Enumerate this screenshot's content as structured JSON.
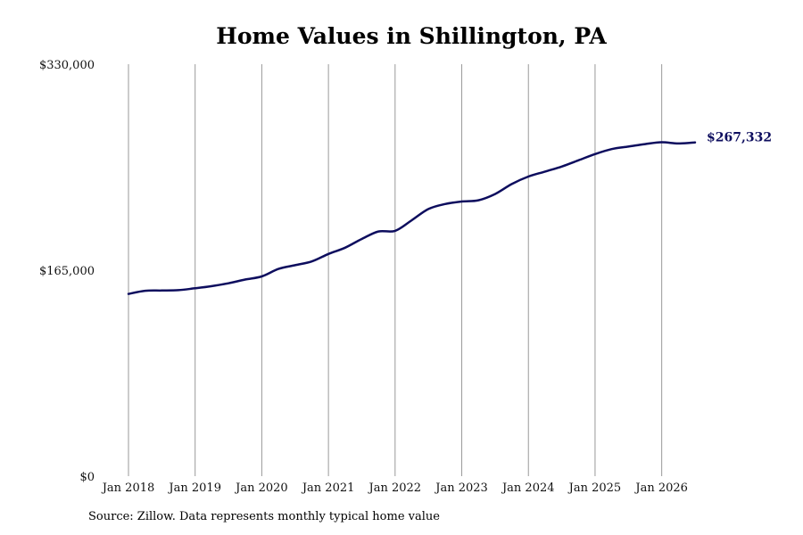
{
  "chart_data": {
    "type": "line",
    "title": "Home Values in Shillington, PA",
    "source": "Source: Zillow. Data represents monthly typical home value",
    "xlabel": "",
    "ylabel": "",
    "ylim": [
      0,
      330000
    ],
    "y_ticks": [
      {
        "value": 0,
        "label": "$0"
      },
      {
        "value": 165000,
        "label": "$165,000"
      },
      {
        "value": 330000,
        "label": "$330,000"
      }
    ],
    "x_range": [
      "2018-01",
      "2026-07"
    ],
    "x_ticks": [
      {
        "date": "2018-01",
        "label": "Jan 2018"
      },
      {
        "date": "2019-01",
        "label": "Jan 2019"
      },
      {
        "date": "2020-01",
        "label": "Jan 2020"
      },
      {
        "date": "2021-01",
        "label": "Jan 2021"
      },
      {
        "date": "2022-01",
        "label": "Jan 2022"
      },
      {
        "date": "2023-01",
        "label": "Jan 2023"
      },
      {
        "date": "2024-01",
        "label": "Jan 2024"
      },
      {
        "date": "2025-01",
        "label": "Jan 2025"
      },
      {
        "date": "2026-01",
        "label": "Jan 2026"
      }
    ],
    "grid": "vertical",
    "line_color": "#0d0d5e",
    "end_label": "$267,332",
    "series": [
      {
        "x": [
          "2018-01",
          "2018-04",
          "2018-07",
          "2018-10",
          "2019-01",
          "2019-04",
          "2019-07",
          "2019-10",
          "2020-01",
          "2020-04",
          "2020-07",
          "2020-10",
          "2021-01",
          "2021-04",
          "2021-07",
          "2021-10",
          "2022-01",
          "2022-04",
          "2022-07",
          "2022-10",
          "2023-01",
          "2023-04",
          "2023-07",
          "2023-10",
          "2024-01",
          "2024-04",
          "2024-07",
          "2024-10",
          "2025-01",
          "2025-04",
          "2025-07",
          "2025-10",
          "2026-01",
          "2026-04",
          "2026-07"
        ],
        "values": [
          146000,
          148500,
          148700,
          149000,
          150500,
          152200,
          154500,
          157500,
          160000,
          166000,
          169000,
          172000,
          178000,
          183000,
          190000,
          196000,
          196500,
          205000,
          214000,
          218000,
          220000,
          221000,
          226000,
          234000,
          240000,
          244000,
          248000,
          253000,
          258000,
          262000,
          264000,
          266000,
          267500,
          266500,
          267332
        ]
      }
    ]
  }
}
